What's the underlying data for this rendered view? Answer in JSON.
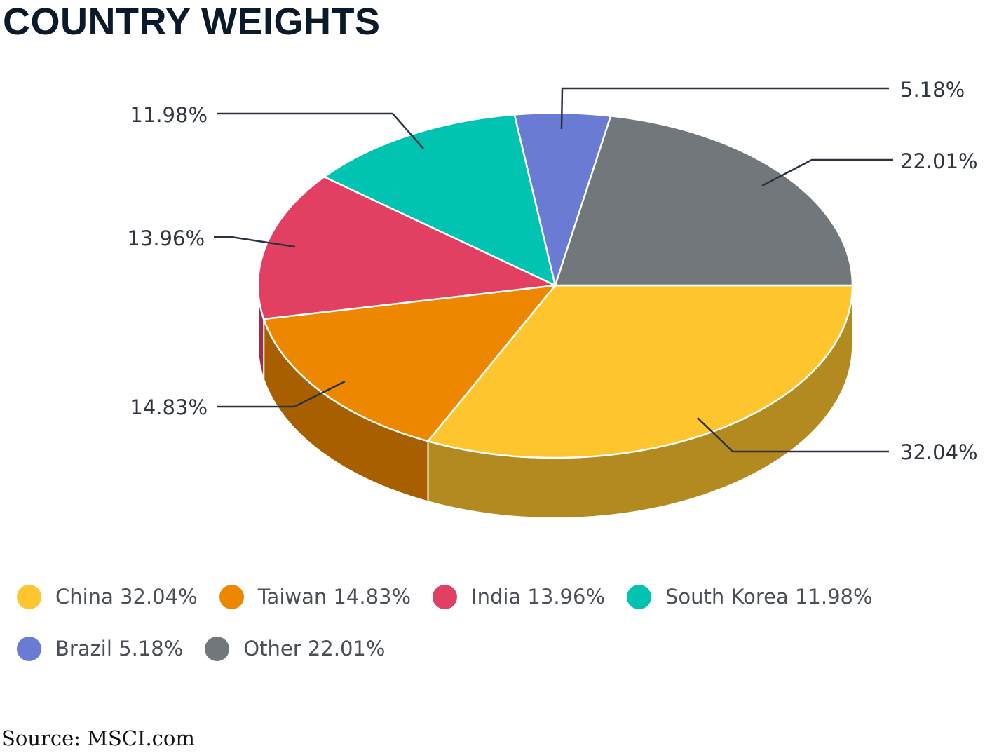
{
  "chart_data": {
    "type": "pie",
    "title": "COUNTRY WEIGHTS",
    "categories": [
      "China",
      "Taiwan",
      "India",
      "South Korea",
      "Brazil",
      "Other"
    ],
    "values": [
      32.04,
      14.83,
      13.96,
      11.98,
      5.18,
      22.01
    ],
    "data_labels": [
      "32.04%",
      "14.83%",
      "13.96%",
      "11.98%",
      "5.18%",
      "22.01%"
    ],
    "legend_labels": [
      "China 32.04%",
      "Taiwan 14.83%",
      "India 13.96%",
      "South Korea 11.98%",
      "Brazil 5.18%",
      "Other 22.01%"
    ],
    "colors": [
      "#fec52e",
      "#ee8700",
      "#e14063",
      "#00c3b1",
      "#6a7bd3",
      "#72777c"
    ],
    "style": "3d",
    "legend_position": "bottom"
  },
  "source": "Source: MSCI.com"
}
